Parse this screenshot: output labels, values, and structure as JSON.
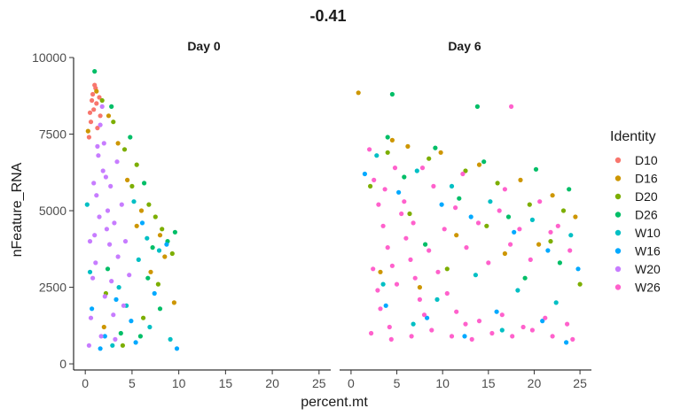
{
  "chart_data": {
    "type": "scatter",
    "title": "-0.41",
    "xlabel": "percent.mt",
    "ylabel": "nFeature_RNA",
    "xlim": [
      -1.25,
      26.25
    ],
    "ylim": [
      -200,
      10000
    ],
    "x_ticks": [
      0,
      5,
      10,
      15,
      20,
      25
    ],
    "y_ticks": [
      0,
      2500,
      5000,
      7500,
      10000
    ],
    "grid": false,
    "legend": {
      "title": "Identity",
      "placement": "right",
      "entries": [
        {
          "name": "D10",
          "color": "#F8766D"
        },
        {
          "name": "D16",
          "color": "#CD9600"
        },
        {
          "name": "D20",
          "color": "#7CAE00"
        },
        {
          "name": "D26",
          "color": "#00BE67"
        },
        {
          "name": "W10",
          "color": "#00BFC4"
        },
        {
          "name": "W16",
          "color": "#00A9FF"
        },
        {
          "name": "W20",
          "color": "#C77CFF"
        },
        {
          "name": "W26",
          "color": "#FF61CC"
        }
      ]
    },
    "panels": [
      {
        "label": "Day 0",
        "series": [
          {
            "name": "D10",
            "points": [
              [
                0.5,
                8200
              ],
              [
                0.8,
                8800
              ],
              [
                1.0,
                9100
              ],
              [
                1.2,
                8500
              ],
              [
                0.6,
                7900
              ],
              [
                1.5,
                8700
              ],
              [
                0.9,
                8300
              ],
              [
                1.3,
                7700
              ],
              [
                0.7,
                8600
              ],
              [
                1.1,
                9000
              ],
              [
                0.4,
                7400
              ],
              [
                1.6,
                8100
              ]
            ]
          },
          {
            "name": "D16",
            "points": [
              [
                1.2,
                8900
              ],
              [
                2.5,
                8100
              ],
              [
                3.5,
                7200
              ],
              [
                0.3,
                7600
              ],
              [
                4.5,
                6000
              ],
              [
                6.0,
                5000
              ],
              [
                8.0,
                4200
              ],
              [
                9.5,
                2000
              ],
              [
                7.0,
                3000
              ],
              [
                2.0,
                1200
              ],
              [
                5.5,
                4500
              ],
              [
                8.5,
                3500
              ]
            ]
          },
          {
            "name": "D20",
            "points": [
              [
                1.8,
                8600
              ],
              [
                3.0,
                7900
              ],
              [
                4.2,
                7000
              ],
              [
                5.5,
                6500
              ],
              [
                6.8,
                5200
              ],
              [
                7.5,
                4800
              ],
              [
                8.2,
                4400
              ],
              [
                9.3,
                3600
              ],
              [
                6.2,
                1500
              ],
              [
                4.0,
                600
              ],
              [
                2.2,
                2300
              ],
              [
                5.0,
                5800
              ],
              [
                7.8,
                2600
              ]
            ]
          },
          {
            "name": "D26",
            "points": [
              [
                1.0,
                9550
              ],
              [
                2.8,
                8400
              ],
              [
                4.8,
                7400
              ],
              [
                6.3,
                5900
              ],
              [
                7.2,
                3800
              ],
              [
                8.8,
                4000
              ],
              [
                9.6,
                4300
              ],
              [
                3.8,
                1000
              ],
              [
                5.9,
                900
              ],
              [
                2.4,
                3100
              ],
              [
                6.7,
                2800
              ],
              [
                8.0,
                1800
              ]
            ]
          },
          {
            "name": "W10",
            "points": [
              [
                0.2,
                5200
              ],
              [
                0.5,
                3000
              ],
              [
                3.6,
                2500
              ],
              [
                5.2,
                5300
              ],
              [
                6.6,
                4100
              ],
              [
                7.9,
                3700
              ],
              [
                9.1,
                800
              ],
              [
                4.4,
                1900
              ],
              [
                2.9,
                600
              ],
              [
                6.9,
                1200
              ],
              [
                5.7,
                3400
              ]
            ]
          },
          {
            "name": "W16",
            "points": [
              [
                0.7,
                1800
              ],
              [
                2.1,
                900
              ],
              [
                3.3,
                2100
              ],
              [
                4.9,
                1400
              ],
              [
                6.1,
                4600
              ],
              [
                7.4,
                2300
              ],
              [
                8.7,
                3900
              ],
              [
                9.8,
                500
              ],
              [
                1.6,
                500
              ],
              [
                5.4,
                700
              ]
            ]
          },
          {
            "name": "W20",
            "points": [
              [
                0.4,
                600
              ],
              [
                0.6,
                1500
              ],
              [
                0.8,
                2800
              ],
              [
                1.0,
                4200
              ],
              [
                1.2,
                5500
              ],
              [
                1.4,
                6800
              ],
              [
                1.6,
                7800
              ],
              [
                1.8,
                8400
              ],
              [
                2.0,
                7200
              ],
              [
                2.2,
                6100
              ],
              [
                2.4,
                5000
              ],
              [
                2.6,
                3900
              ],
              [
                2.8,
                2700
              ],
              [
                3.0,
                1600
              ],
              [
                3.2,
                800
              ],
              [
                1.1,
                3300
              ],
              [
                1.5,
                4800
              ],
              [
                1.9,
                6300
              ],
              [
                2.3,
                4400
              ],
              [
                2.7,
                5800
              ],
              [
                3.1,
                4600
              ],
              [
                3.5,
                3500
              ],
              [
                3.9,
                5200
              ],
              [
                4.3,
                4000
              ],
              [
                4.7,
                2900
              ],
              [
                1.3,
                7100
              ],
              [
                0.9,
                5900
              ],
              [
                2.1,
                2200
              ],
              [
                3.4,
                6600
              ],
              [
                4.1,
                1900
              ],
              [
                1.7,
                900
              ],
              [
                0.5,
                4000
              ]
            ]
          }
        ]
      },
      {
        "label": "Day 6",
        "series": [
          {
            "name": "D16",
            "points": [
              [
                0.8,
                8850
              ],
              [
                4.5,
                7300
              ],
              [
                6.2,
                7100
              ],
              [
                9.8,
                6900
              ],
              [
                14.0,
                6500
              ],
              [
                18.5,
                6000
              ],
              [
                22.0,
                5500
              ],
              [
                24.5,
                4800
              ],
              [
                3.2,
                3000
              ],
              [
                11.5,
                4200
              ],
              [
                16.8,
                3600
              ],
              [
                20.5,
                3900
              ],
              [
                7.5,
                2500
              ]
            ]
          },
          {
            "name": "D20",
            "points": [
              [
                4.0,
                6900
              ],
              [
                8.5,
                6700
              ],
              [
                12.5,
                6300
              ],
              [
                16.0,
                5900
              ],
              [
                19.5,
                5200
              ],
              [
                23.2,
                5000
              ],
              [
                2.1,
                5800
              ],
              [
                10.5,
                3100
              ],
              [
                14.8,
                4500
              ],
              [
                21.8,
                4000
              ],
              [
                6.4,
                4900
              ],
              [
                25.0,
                2600
              ]
            ]
          },
          {
            "name": "D26",
            "points": [
              [
                4.5,
                8800
              ],
              [
                13.8,
                8400
              ],
              [
                4.0,
                7400
              ],
              [
                9.2,
                7050
              ],
              [
                14.5,
                6600
              ],
              [
                20.2,
                6350
              ],
              [
                23.8,
                5700
              ],
              [
                5.8,
                6100
              ],
              [
                11.8,
                5400
              ],
              [
                17.2,
                4800
              ],
              [
                22.8,
                3300
              ],
              [
                8.1,
                3900
              ],
              [
                19.0,
                2800
              ]
            ]
          },
          {
            "name": "W10",
            "points": [
              [
                2.8,
                6800
              ],
              [
                7.2,
                6300
              ],
              [
                11.0,
                5800
              ],
              [
                15.2,
                5300
              ],
              [
                19.8,
                4700
              ],
              [
                24.0,
                4200
              ],
              [
                3.5,
                2600
              ],
              [
                9.4,
                2100
              ],
              [
                13.6,
                2900
              ],
              [
                18.2,
                2400
              ],
              [
                22.4,
                2000
              ],
              [
                6.8,
                1300
              ],
              [
                16.5,
                1100
              ]
            ]
          },
          {
            "name": "W16",
            "points": [
              [
                1.5,
                6200
              ],
              [
                5.2,
                5600
              ],
              [
                9.9,
                5200
              ],
              [
                13.1,
                4800
              ],
              [
                17.8,
                4300
              ],
              [
                21.5,
                3700
              ],
              [
                24.8,
                3100
              ],
              [
                3.8,
                1900
              ],
              [
                8.3,
                1500
              ],
              [
                12.4,
                900
              ],
              [
                15.9,
                1700
              ],
              [
                20.9,
                1400
              ],
              [
                23.5,
                700
              ]
            ]
          },
          {
            "name": "W26",
            "points": [
              [
                17.5,
                8400
              ],
              [
                2.0,
                7000
              ],
              [
                2.5,
                6000
              ],
              [
                3.0,
                5200
              ],
              [
                3.5,
                4500
              ],
              [
                4.0,
                3800
              ],
              [
                4.5,
                3200
              ],
              [
                5.0,
                2600
              ],
              [
                3.2,
                1800
              ],
              [
                4.2,
                1200
              ],
              [
                5.5,
                4900
              ],
              [
                6.0,
                4100
              ],
              [
                6.5,
                3400
              ],
              [
                7.0,
                2800
              ],
              [
                7.5,
                2100
              ],
              [
                8.0,
                1600
              ],
              [
                2.4,
                3100
              ],
              [
                2.9,
                2400
              ],
              [
                3.7,
                5700
              ],
              [
                4.8,
                6400
              ],
              [
                5.8,
                5300
              ],
              [
                6.8,
                4600
              ],
              [
                8.5,
                3700
              ],
              [
                9.5,
                3000
              ],
              [
                10.5,
                2300
              ],
              [
                11.5,
                1700
              ],
              [
                12.5,
                1300
              ],
              [
                2.2,
                1000
              ],
              [
                4.4,
                800
              ],
              [
                6.6,
                900
              ],
              [
                8.8,
                1100
              ],
              [
                11.0,
                900
              ],
              [
                13.2,
                800
              ],
              [
                15.4,
                1000
              ],
              [
                17.6,
                900
              ],
              [
                19.8,
                1100
              ],
              [
                22.0,
                900
              ],
              [
                24.2,
                800
              ],
              [
                14.0,
                1400
              ],
              [
                16.5,
                1600
              ],
              [
                18.8,
                1200
              ],
              [
                21.2,
                1500
              ],
              [
                23.6,
                1300
              ],
              [
                10.2,
                4400
              ],
              [
                12.6,
                3800
              ],
              [
                15.0,
                3300
              ],
              [
                17.4,
                3900
              ],
              [
                19.6,
                3400
              ],
              [
                21.8,
                4300
              ],
              [
                23.9,
                3700
              ],
              [
                9.0,
                5800
              ],
              [
                11.4,
                5100
              ],
              [
                13.9,
                4600
              ],
              [
                16.2,
                5000
              ],
              [
                18.4,
                4400
              ],
              [
                20.6,
                5300
              ],
              [
                22.6,
                4500
              ],
              [
                7.8,
                6400
              ],
              [
                12.2,
                6200
              ],
              [
                16.8,
                5700
              ]
            ]
          }
        ]
      }
    ]
  }
}
